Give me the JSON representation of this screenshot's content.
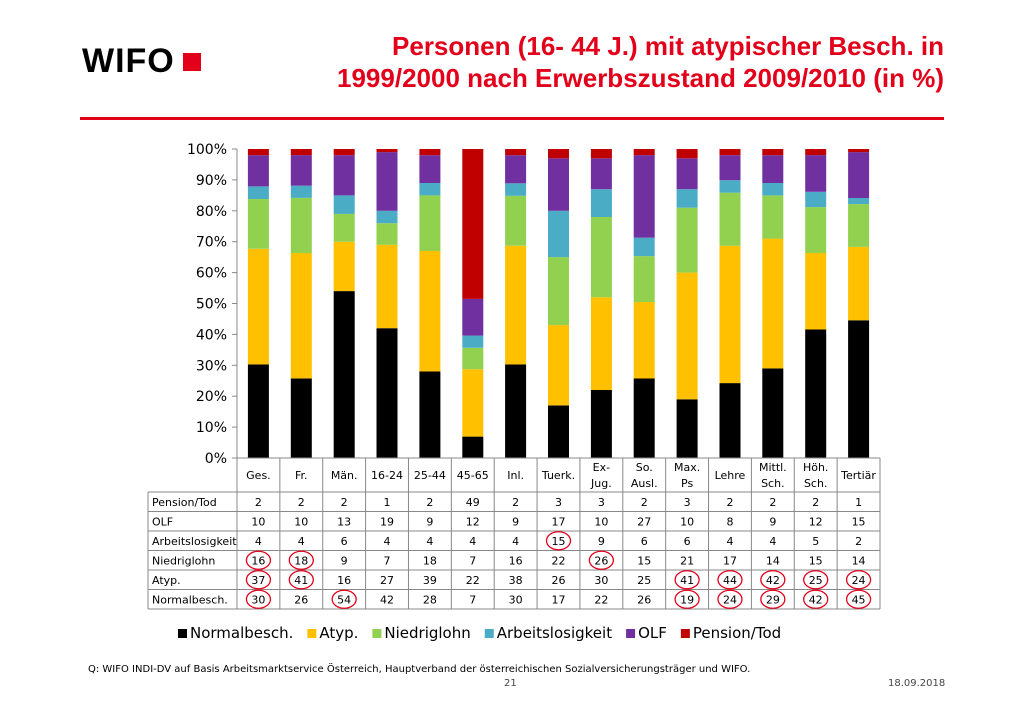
{
  "header": {
    "logo": "WIFO",
    "title_line1": "Personen (16- 44 J.) mit atypischer Besch. in",
    "title_line2": "1999/2000 nach Erwerbszustand 2009/2010 (in %)"
  },
  "chart_data": {
    "type": "bar",
    "stacked": true,
    "categories": [
      "Ges.",
      "Fr.",
      "Män.",
      "16-24",
      "25-44",
      "45-65",
      "Inl.",
      "Tuerk.",
      "Ex-Jug.",
      "So. Ausl.",
      "Max. Ps",
      "Lehre",
      "Mittl. Sch.",
      "Höh. Sch.",
      "Tertiär"
    ],
    "category_lines": [
      [
        "Ges."
      ],
      [
        "Fr."
      ],
      [
        "Män."
      ],
      [
        "16-24"
      ],
      [
        "25-44"
      ],
      [
        "45-65"
      ],
      [
        "Inl."
      ],
      [
        "Tuerk."
      ],
      [
        "Ex-",
        "Jug."
      ],
      [
        "So.",
        "Ausl."
      ],
      [
        "Max.",
        "Ps"
      ],
      [
        "Lehre"
      ],
      [
        "Mittl.",
        "Sch."
      ],
      [
        "Höh.",
        "Sch."
      ],
      [
        "Tertiär"
      ]
    ],
    "yticks": [
      "0%",
      "10%",
      "20%",
      "30%",
      "40%",
      "50%",
      "60%",
      "70%",
      "80%",
      "90%",
      "100%"
    ],
    "ylim": [
      0,
      100
    ],
    "series": [
      {
        "name": "Normalbesch.",
        "color": "#000000",
        "values": [
          30,
          26,
          54,
          42,
          28,
          7,
          30,
          17,
          22,
          26,
          19,
          24,
          29,
          42,
          45
        ]
      },
      {
        "name": "Atyp.",
        "color": "#ffc000",
        "values": [
          37,
          41,
          16,
          27,
          39,
          22,
          38,
          26,
          30,
          25,
          41,
          44,
          42,
          25,
          24
        ]
      },
      {
        "name": "Niedriglohn",
        "color": "#92d050",
        "values": [
          16,
          18,
          9,
          7,
          18,
          7,
          16,
          22,
          26,
          15,
          21,
          17,
          14,
          15,
          14
        ]
      },
      {
        "name": "Arbeitslosigkeit",
        "color": "#4bacc6",
        "values": [
          4,
          4,
          6,
          4,
          4,
          4,
          4,
          15,
          9,
          6,
          6,
          4,
          4,
          5,
          2
        ]
      },
      {
        "name": "OLF",
        "color": "#7030a0",
        "values": [
          10,
          10,
          13,
          19,
          9,
          12,
          9,
          17,
          10,
          27,
          10,
          8,
          9,
          12,
          15
        ]
      },
      {
        "name": "Pension/Tod",
        "color": "#c00000",
        "values": [
          2,
          2,
          2,
          1,
          2,
          49,
          2,
          3,
          3,
          2,
          3,
          2,
          2,
          2,
          1
        ]
      }
    ],
    "table_rows": [
      {
        "name": "Pension/Tod",
        "values": [
          "2",
          "2",
          "2",
          "1",
          "2",
          "49",
          "2",
          "3",
          "3",
          "2",
          "3",
          "2",
          "2",
          "2",
          "1"
        ]
      },
      {
        "name": "OLF",
        "values": [
          "10",
          "10",
          "13",
          "19",
          "9",
          "12",
          "9",
          "17",
          "10",
          "27",
          "10",
          "8",
          "9",
          "12",
          "15"
        ]
      },
      {
        "name": "Arbeitslosigkeit",
        "values": [
          "4",
          "4",
          "6",
          "4",
          "4",
          "4",
          "4",
          "15",
          "9",
          "6",
          "6",
          "4",
          "4",
          "5",
          "2"
        ]
      },
      {
        "name": "Niedriglohn",
        "values": [
          "16",
          "18",
          "9",
          "7",
          "18",
          "7",
          "16",
          "22",
          "26",
          "15",
          "21",
          "17",
          "14",
          "15",
          "14"
        ]
      },
      {
        "name": "Atyp.",
        "values": [
          "37",
          "41",
          "16",
          "27",
          "39",
          "22",
          "38",
          "26",
          "30",
          "25",
          "41",
          "44",
          "42",
          "25",
          "24"
        ]
      },
      {
        "name": "Normalbesch.",
        "values": [
          "30",
          "26",
          "54",
          "42",
          "28",
          "7",
          "30",
          "17",
          "22",
          "26",
          "19",
          "24",
          "29",
          "42",
          "45"
        ]
      }
    ],
    "highlight_color": "#e2001a",
    "highlighted_cells": [
      [
        2,
        7
      ],
      [
        3,
        0
      ],
      [
        3,
        1
      ],
      [
        3,
        8
      ],
      [
        4,
        0
      ],
      [
        4,
        1
      ],
      [
        4,
        10
      ],
      [
        4,
        11
      ],
      [
        4,
        12
      ],
      [
        4,
        13
      ],
      [
        4,
        14
      ],
      [
        5,
        0
      ],
      [
        5,
        2
      ],
      [
        5,
        10
      ],
      [
        5,
        11
      ],
      [
        5,
        12
      ],
      [
        5,
        13
      ],
      [
        5,
        14
      ]
    ],
    "legend": [
      "Normalbesch.",
      "Atyp.",
      "Niedriglohn",
      "Arbeitslosigkeit",
      "OLF",
      "Pension/Tod"
    ],
    "legend_position": "bottom",
    "grid": false
  },
  "footer": {
    "source": "Q: WIFO INDI-DV auf Basis Arbeitsmarktservice Österreich, Hauptverband der österreichischen Sozialversicherungsträger und WIFO.",
    "page": "21",
    "date": "18.09.2018"
  }
}
